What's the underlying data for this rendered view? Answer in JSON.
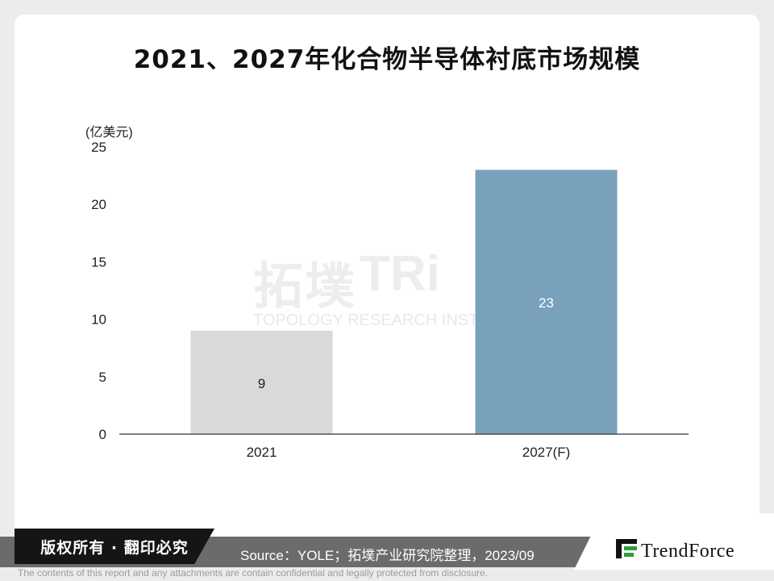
{
  "title": "2021、2027年化合物半导体衬底市场规模",
  "chart_data": {
    "type": "bar",
    "title": "2021、2027年化合物半导体衬底市场规模",
    "ylabel": "(亿美元)",
    "xlabel": "",
    "categories": [
      "2021",
      "2027(F)"
    ],
    "values": [
      9,
      23
    ],
    "value_labels": [
      "9",
      "23"
    ],
    "bar_colors": [
      "#d9d9d9",
      "#78a1bb"
    ],
    "ylim": [
      0,
      25
    ],
    "yticks": [
      0,
      5,
      10,
      15,
      20,
      25
    ],
    "grid": false,
    "legend": "none"
  },
  "watermark": {
    "chinese": "拓墣",
    "latin": "TRi",
    "english": "TOPOLOGY RESEARCH INSTITUTE"
  },
  "footer": {
    "copyright": "版权所有 · 翻印必究",
    "source": "Source：YOLE；拓墣产业研究院整理，2023/09",
    "logo_text": "TrendForce",
    "disclaimer": "The contents of this report and any attachments are contain confidential and legally protected from disclosure."
  }
}
